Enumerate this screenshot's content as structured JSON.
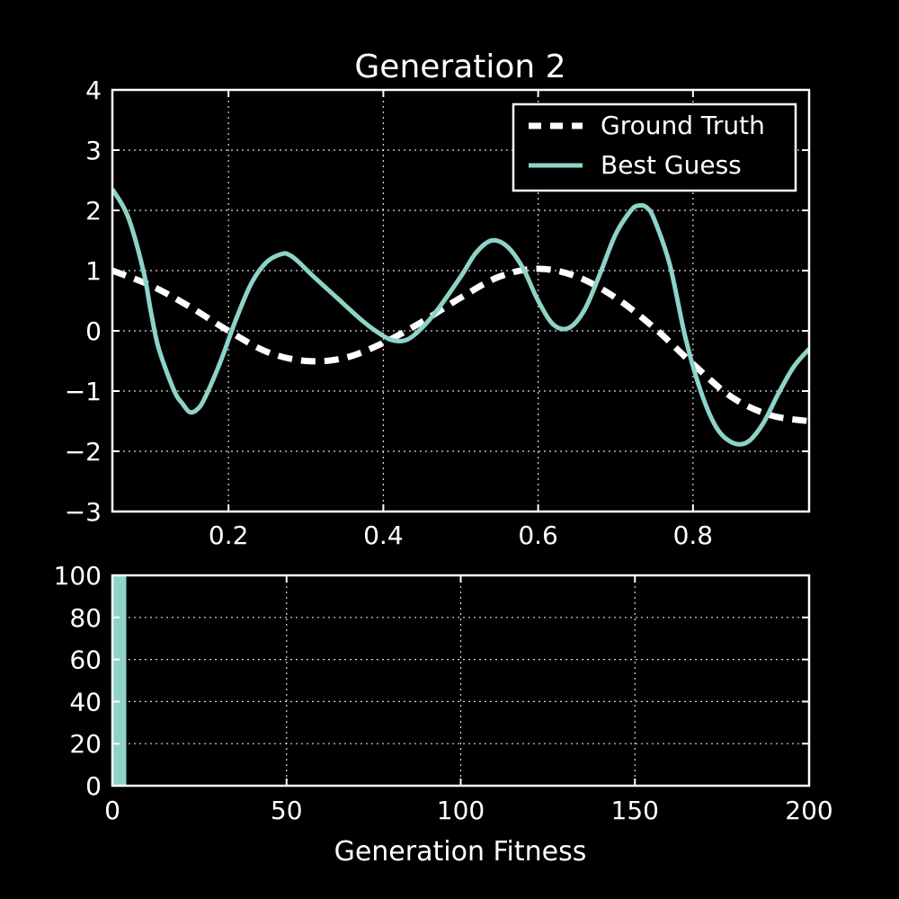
{
  "chart_data": [
    {
      "type": "line",
      "title": "Generation 2",
      "xlabel": "",
      "ylabel": "",
      "xlim": [
        0.05,
        0.95
      ],
      "ylim": [
        -3,
        4
      ],
      "xticks": [
        0.2,
        0.4,
        0.6,
        0.8
      ],
      "xtick_labels": [
        "0.2",
        "0.4",
        "0.6",
        "0.8"
      ],
      "yticks": [
        -3,
        -2,
        -1,
        0,
        1,
        2,
        3,
        4
      ],
      "ytick_labels": [
        "−3",
        "−2",
        "−1",
        "0",
        "1",
        "2",
        "3",
        "4"
      ],
      "grid": true,
      "legend_position": "top-right",
      "series": [
        {
          "name": "Ground Truth",
          "style": "dashed",
          "color": "#ffffff",
          "x": [
            0.05,
            0.1,
            0.15,
            0.2,
            0.25,
            0.3,
            0.35,
            0.4,
            0.45,
            0.5,
            0.55,
            0.6,
            0.65,
            0.7,
            0.75,
            0.8,
            0.85,
            0.9,
            0.95
          ],
          "y": [
            1.0,
            0.75,
            0.4,
            0.0,
            -0.35,
            -0.5,
            -0.45,
            -0.2,
            0.15,
            0.55,
            0.9,
            1.03,
            0.9,
            0.55,
            0.05,
            -0.55,
            -1.1,
            -1.4,
            -1.5
          ]
        },
        {
          "name": "Best Guess",
          "style": "solid",
          "color": "#8dd3c7",
          "x": [
            0.05,
            0.07,
            0.09,
            0.1,
            0.11,
            0.13,
            0.14,
            0.15,
            0.16,
            0.17,
            0.19,
            0.21,
            0.23,
            0.25,
            0.27,
            0.28,
            0.29,
            0.31,
            0.34,
            0.37,
            0.39,
            0.41,
            0.43,
            0.45,
            0.47,
            0.5,
            0.52,
            0.54,
            0.56,
            0.58,
            0.6,
            0.62,
            0.64,
            0.66,
            0.68,
            0.7,
            0.72,
            0.73,
            0.74,
            0.75,
            0.77,
            0.79,
            0.81,
            0.83,
            0.85,
            0.87,
            0.89,
            0.91,
            0.93,
            0.95
          ],
          "y": [
            2.35,
            1.9,
            1.0,
            0.3,
            -0.3,
            -1.0,
            -1.2,
            -1.35,
            -1.3,
            -1.1,
            -0.5,
            0.2,
            0.8,
            1.15,
            1.28,
            1.25,
            1.15,
            0.9,
            0.55,
            0.2,
            0.0,
            -0.15,
            -0.15,
            0.05,
            0.35,
            0.9,
            1.3,
            1.5,
            1.4,
            1.05,
            0.5,
            0.1,
            0.05,
            0.35,
            0.95,
            1.6,
            2.0,
            2.08,
            2.05,
            1.85,
            1.1,
            -0.1,
            -1.0,
            -1.6,
            -1.85,
            -1.85,
            -1.55,
            -1.05,
            -0.6,
            -0.3
          ]
        }
      ]
    },
    {
      "type": "bar",
      "title": "",
      "xlabel": "Generation Fitness",
      "ylabel": "",
      "xlim": [
        0,
        200
      ],
      "ylim": [
        0,
        100
      ],
      "xticks": [
        0,
        50,
        100,
        150,
        200
      ],
      "xtick_labels": [
        "0",
        "50",
        "100",
        "150",
        "200"
      ],
      "yticks": [
        0,
        20,
        40,
        60,
        80,
        100
      ],
      "ytick_labels": [
        "0",
        "20",
        "40",
        "60",
        "80",
        "100"
      ],
      "grid": true,
      "bars": [
        {
          "x0": 0,
          "x1": 4,
          "value": 100,
          "color": "#8dd3c7"
        }
      ]
    }
  ]
}
